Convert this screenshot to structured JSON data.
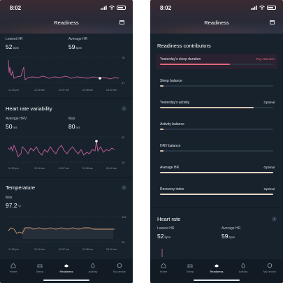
{
  "colors": {
    "accent_pink": "#c9609a",
    "accent_orange": "#d59a6a",
    "attention": "#e0667a",
    "bar_fill": "#e8d6c6",
    "bar_dim": "#d8c4b2",
    "background": "#17222d"
  },
  "status_bar": {
    "time": "8:02",
    "location_icon": "location-arrow-icon",
    "signal_icon": "signal-icon",
    "wifi_icon": "wifi-icon",
    "battery_icon": "battery-icon"
  },
  "header": {
    "title": "Readiness",
    "calendar_icon": "calendar-icon"
  },
  "left": {
    "lowest_hr": {
      "label": "Lowest HR",
      "value": "52",
      "unit": "bpm"
    },
    "average_hr": {
      "label": "Average HR",
      "value": "59",
      "unit": "bpm"
    },
    "hr_chart": {
      "y_top": "78",
      "y_bottom": "47",
      "ticks": [
        "11:25 pm",
        "12:16 am",
        "01:07 am",
        "01:58 am",
        "03:42 am"
      ]
    },
    "hrv": {
      "title": "Heart rate variability",
      "average_label": "Average HRV",
      "average_value": "50",
      "average_unit": "ms",
      "max_label": "Max",
      "max_value": "80",
      "max_unit": "ms",
      "chart": {
        "y_top": "82",
        "y_bottom": "20",
        "ticks": [
          "11:25 pm",
          "12:16 am",
          "01:07 am",
          "01:58 am",
          "03:42 am"
        ]
      }
    },
    "temperature": {
      "title": "Temperature",
      "max_label": "Max",
      "max_value": "97.2",
      "max_unit": "°F",
      "chart": {
        "y_top": "102",
        "y_bottom": "90",
        "ticks": [
          "11:25 pm",
          "12:16 am",
          "01:07 am",
          "01:58 am",
          "03:42 am"
        ]
      }
    }
  },
  "right": {
    "contributors_title": "Readiness contributors",
    "contributors": [
      {
        "name": "Yesterday's sleep duration",
        "status": "Pay Attention",
        "level": 0.62,
        "attention": true
      },
      {
        "name": "Sleep balance",
        "status": "",
        "level": 0.03,
        "attention": false
      },
      {
        "name": "Yesterday's activity",
        "status": "Optimal",
        "level": 0.83,
        "attention": false
      },
      {
        "name": "Activity balance",
        "status": "",
        "level": 0.03,
        "attention": false
      },
      {
        "name": "HRV balance",
        "status": "",
        "level": 0.03,
        "attention": false
      },
      {
        "name": "Average HR",
        "status": "Optimal",
        "level": 1.0,
        "attention": false
      },
      {
        "name": "Recovery index",
        "status": "Optimal",
        "level": 1.0,
        "attention": false
      }
    ],
    "heart_rate": {
      "title": "Heart rate",
      "lowest_label": "Lowest HR",
      "lowest_value": "52",
      "lowest_unit": "bpm",
      "average_label": "Average HR",
      "average_value": "59",
      "average_unit": "bpm"
    }
  },
  "tabs": [
    {
      "label": "Home",
      "icon": "home-icon",
      "active": false
    },
    {
      "label": "Sleep",
      "icon": "bed-icon",
      "active": false
    },
    {
      "label": "Readiness",
      "icon": "readiness-icon",
      "active": true
    },
    {
      "label": "Activity",
      "icon": "flame-icon",
      "active": false
    },
    {
      "label": "My device",
      "icon": "ring-icon",
      "active": false
    }
  ],
  "info_glyph": "i"
}
